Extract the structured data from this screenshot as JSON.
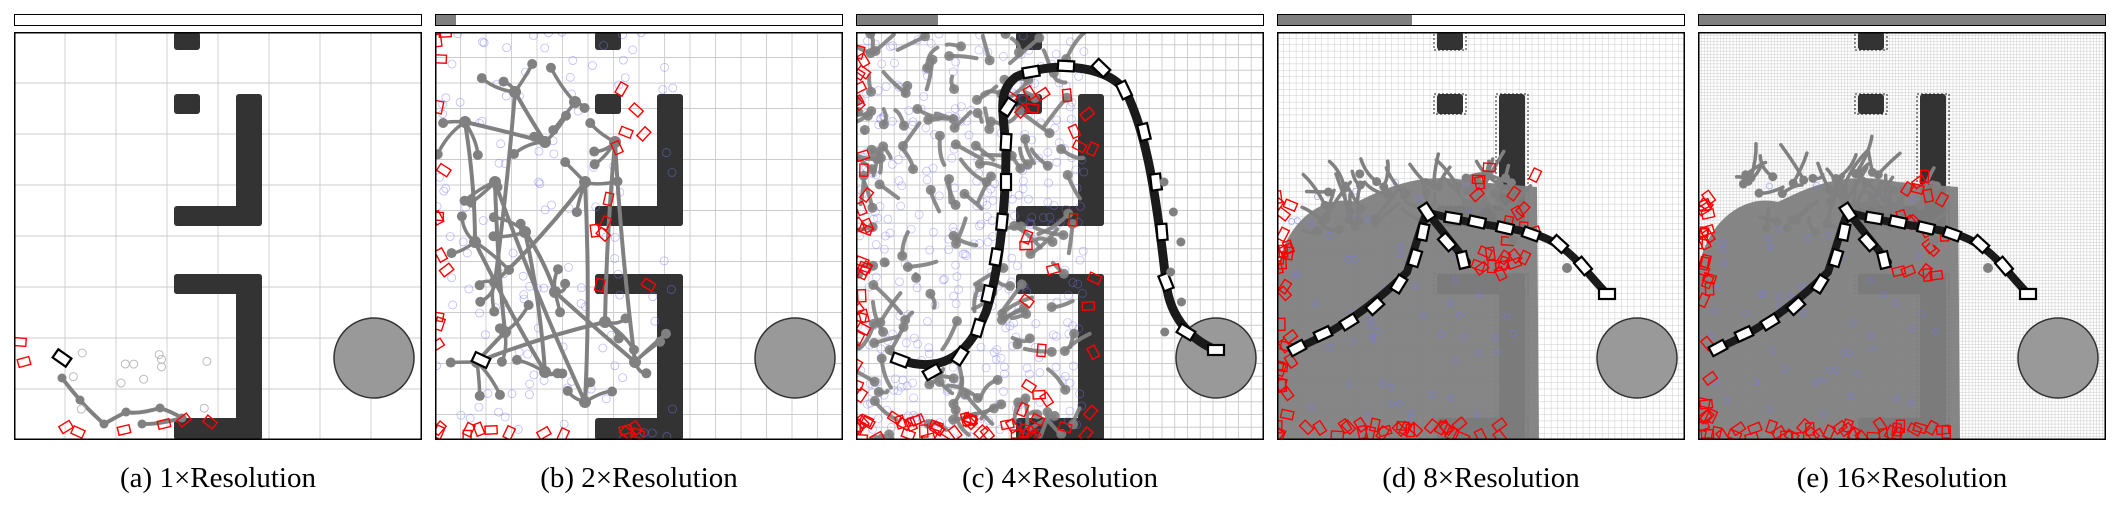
{
  "panels": [
    {
      "caption": "(a) 1×Resolution",
      "resolution": 1,
      "progress": 0.0
    },
    {
      "caption": "(b) 2×Resolution",
      "resolution": 2,
      "progress": 0.05
    },
    {
      "caption": "(c) 4×Resolution",
      "resolution": 4,
      "progress": 0.2
    },
    {
      "caption": "(d) 8×Resolution",
      "resolution": 8,
      "progress": 0.33
    },
    {
      "caption": "(e) 16×Resolution",
      "resolution": 16,
      "progress": 1.0
    }
  ],
  "colors": {
    "obstacle": "#333333",
    "goal": "#999999",
    "tree": "#808080",
    "frontier": "#ff0000",
    "samples": "#7777ff",
    "path": "#1a1a1a",
    "grid": "#cccccc",
    "progress_fill": "#7f7f7f"
  }
}
